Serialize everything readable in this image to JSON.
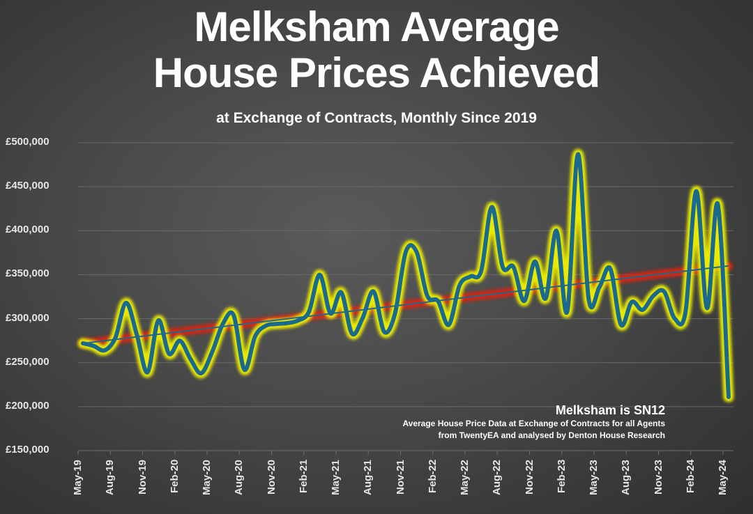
{
  "chart_data": {
    "type": "line",
    "title": "Melksham Average House Prices Achieved",
    "title_lines": [
      "Melksham Average",
      "House Prices Achieved"
    ],
    "subtitle": "at Exchange of Contracts, Monthly Since 2019",
    "xlabel": "",
    "ylabel": "",
    "ylim": [
      150000,
      500000
    ],
    "y_ticks": [
      500000,
      450000,
      400000,
      350000,
      300000,
      250000,
      200000,
      150000
    ],
    "y_tick_labels": [
      "£500,000",
      "£450,000",
      "£400,000",
      "£350,000",
      "£300,000",
      "£250,000",
      "£200,000",
      "£150,000"
    ],
    "x_tick_labels": [
      "May-19",
      "Aug-19",
      "Nov-19",
      "Feb-20",
      "May-20",
      "Aug-20",
      "Nov-20",
      "Feb-21",
      "May-21",
      "Aug-21",
      "Nov-21",
      "Feb-22",
      "May-22",
      "Aug-22",
      "Nov-22",
      "Feb-23",
      "May-23",
      "Aug-23",
      "Nov-23",
      "Feb-24",
      "May-24"
    ],
    "grid": true,
    "series": [
      {
        "name": "Average House Price",
        "color": "#1a6a8e",
        "glow_color": "#e8e800",
        "values": [
          272000,
          269000,
          264000,
          278000,
          318000,
          282000,
          239000,
          298000,
          260000,
          275000,
          254000,
          238000,
          262000,
          294000,
          304000,
          242000,
          280000,
          292000,
          294000,
          295000,
          298000,
          308000,
          350000,
          306000,
          330000,
          283000,
          301000,
          331000,
          285000,
          306000,
          376000,
          376000,
          326000,
          320000,
          293000,
          338000,
          348000,
          354000,
          427000,
          359000,
          359000,
          320000,
          365000,
          323000,
          400000,
          308000,
          487000,
          322000,
          336000,
          357000,
          293000,
          319000,
          310000,
          326000,
          331000,
          300000,
          308000,
          445000,
          312000,
          430000,
          211000
        ]
      },
      {
        "name": "Linear trend",
        "color": "#1a6a8e",
        "glow_color": "#e02010",
        "values_start_end": [
          272000,
          360000
        ]
      }
    ],
    "annotations": {
      "heading": "Melksham is SN12",
      "line1": "Average House Price Data at Exchange of Contracts for all Agents",
      "line2": "from TwentyEA and analysed by Denton House Research"
    }
  }
}
